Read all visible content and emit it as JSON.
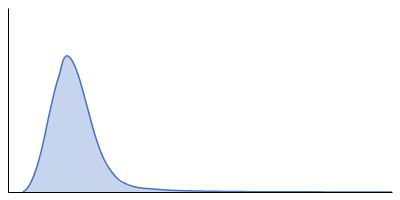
{
  "chart_data": {
    "type": "area",
    "x": [
      0,
      5,
      10,
      15,
      20,
      25,
      30,
      35,
      40,
      45,
      50,
      55,
      60,
      65,
      70,
      75,
      80,
      85,
      90,
      95,
      100,
      110,
      120,
      130,
      140,
      150,
      160,
      170,
      180,
      190,
      200,
      220,
      240,
      260,
      280,
      300,
      320,
      340,
      360,
      380,
      400,
      420,
      450,
      480,
      500
    ],
    "values": [
      0,
      0.02,
      0.06,
      0.12,
      0.2,
      0.3,
      0.42,
      0.55,
      0.67,
      0.78,
      0.87,
      0.97,
      1.0,
      0.98,
      0.93,
      0.86,
      0.77,
      0.67,
      0.57,
      0.47,
      0.38,
      0.24,
      0.15,
      0.09,
      0.06,
      0.04,
      0.03,
      0.025,
      0.02,
      0.016,
      0.013,
      0.009,
      0.007,
      0.005,
      0.004,
      0.003,
      0.002,
      0.002,
      0.001,
      0.001,
      0.001,
      0.0,
      0.0,
      0.0,
      0.0
    ],
    "color": "#4472C4",
    "xlim": [
      -20,
      500
    ],
    "ylim": [
      0,
      1.35
    ],
    "tick_labels": false
  }
}
